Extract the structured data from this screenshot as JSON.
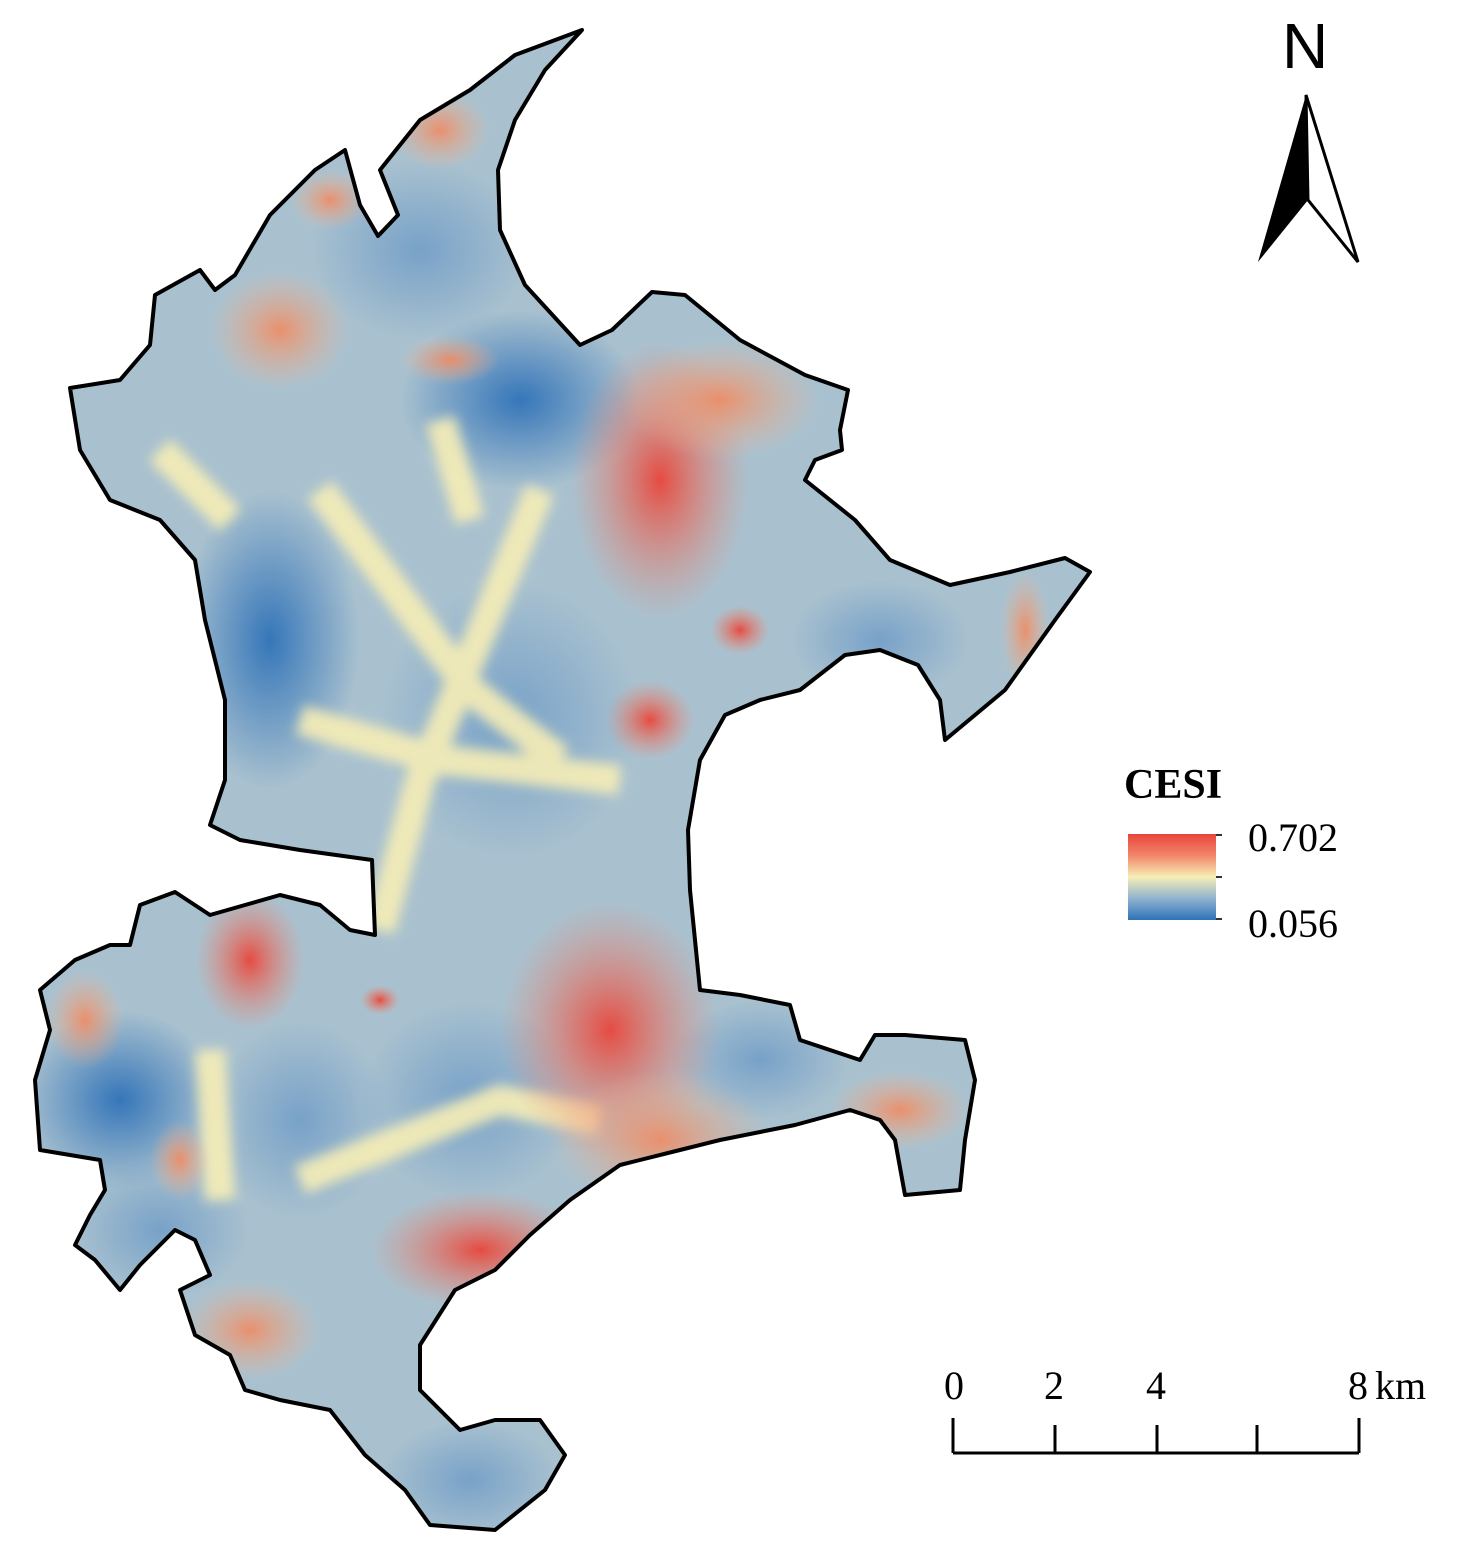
{
  "north_arrow": {
    "label": "N",
    "icon": "north-arrow-icon"
  },
  "legend": {
    "title": "CESI",
    "max_label": "0.702",
    "min_label": "0.056",
    "color_stops": [
      "#e8453b",
      "#f2866a",
      "#f7eeb6",
      "#8fb3cf",
      "#2f72b8"
    ]
  },
  "scale_bar": {
    "labels": [
      "0",
      "2",
      "4",
      "8"
    ],
    "unit": "km"
  },
  "colors": {
    "high": "#e8453b",
    "mid": "#f7eeb6",
    "low": "#2f72b8",
    "outline": "#000000"
  }
}
